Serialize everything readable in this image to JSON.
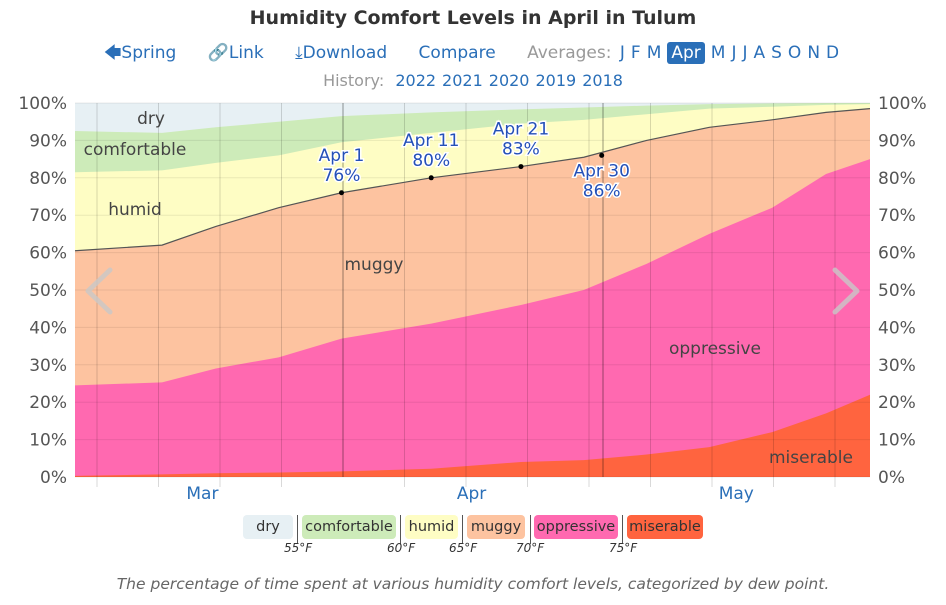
{
  "header": {
    "title": "Humidity Comfort Levels in April in Tulum",
    "nav": {
      "spring": "Spring",
      "link": "Link",
      "download": "Download",
      "compare": "Compare",
      "averages_label": "Averages:",
      "months": [
        "J",
        "F",
        "M",
        "Apr",
        "M",
        "J",
        "J",
        "A",
        "S",
        "O",
        "N",
        "D"
      ],
      "selected_month": "Apr"
    },
    "history_label": "History:",
    "history_years": [
      "2022",
      "2021",
      "2020",
      "2019",
      "2018"
    ]
  },
  "chart_data": {
    "type": "area",
    "title": "Humidity Comfort Levels in April in Tulum",
    "x_unit": "days relative to Apr 1",
    "x": [
      -30,
      -20,
      -14,
      -7,
      0,
      10,
      20,
      27,
      34,
      41,
      48,
      54,
      59
    ],
    "xlim": [
      -29.7,
      58.9
    ],
    "ylim": [
      0,
      100
    ],
    "y_ticks": [
      "0%",
      "10%",
      "20%",
      "30%",
      "40%",
      "50%",
      "60%",
      "70%",
      "80%",
      "90%",
      "100%"
    ],
    "month_labels": [
      {
        "label": "Mar",
        "day": -15.5
      },
      {
        "label": "Apr",
        "day": 14.5
      },
      {
        "label": "May",
        "day": 44
      }
    ],
    "stacked_cumulative_tops": [
      {
        "name": "miserable",
        "color": "#ff643f",
        "values": [
          0.3,
          0.7,
          1,
          1.2,
          1.5,
          2.2,
          4,
          4.5,
          6,
          8,
          12,
          17,
          22
        ]
      },
      {
        "name": "oppressive",
        "color": "#ff69b0",
        "values": [
          24.5,
          25.3,
          29,
          32,
          37,
          41,
          46,
          50,
          57,
          65,
          72,
          81,
          85
        ]
      },
      {
        "name": "muggy",
        "color": "#fdc3a0",
        "values": [
          60.5,
          62,
          67,
          72,
          76,
          80,
          83,
          85.5,
          90,
          93.5,
          95.5,
          97.5,
          98.5
        ]
      },
      {
        "name": "humid",
        "color": "#fefdc4",
        "values": [
          81.5,
          82,
          84,
          86,
          89.5,
          92,
          94.5,
          95.5,
          97,
          98.5,
          99,
          99.5,
          99.7
        ]
      },
      {
        "name": "comfortable",
        "color": "#cdebb9",
        "values": [
          92.5,
          92,
          93.5,
          95,
          96.5,
          97.5,
          98.3,
          98.8,
          99.3,
          99.7,
          99.9,
          100,
          100
        ]
      },
      {
        "name": "dry",
        "color": "#e7f0f4",
        "values": [
          100,
          100,
          100,
          100,
          100,
          100,
          100,
          100,
          100,
          100,
          100,
          100,
          100
        ]
      }
    ],
    "area_labels": [
      "dry",
      "comfortable",
      "humid",
      "muggy",
      "oppressive",
      "miserable"
    ],
    "annotations": [
      {
        "date": "Apr 1",
        "value": "76%",
        "day": 0,
        "y": 76
      },
      {
        "date": "Apr 11",
        "value": "80%",
        "day": 10,
        "y": 80
      },
      {
        "date": "Apr 21",
        "value": "83%",
        "day": 20,
        "y": 83
      },
      {
        "date": "Apr 30",
        "value": "86%",
        "day": 29,
        "y": 86
      }
    ],
    "legend": {
      "items": [
        "dry",
        "comfortable",
        "humid",
        "muggy",
        "oppressive",
        "miserable"
      ],
      "thresholds": [
        "55°F",
        "60°F",
        "65°F",
        "70°F",
        "75°F"
      ]
    }
  },
  "caption": "The percentage of time spent at various humidity comfort levels, categorized by dew point."
}
